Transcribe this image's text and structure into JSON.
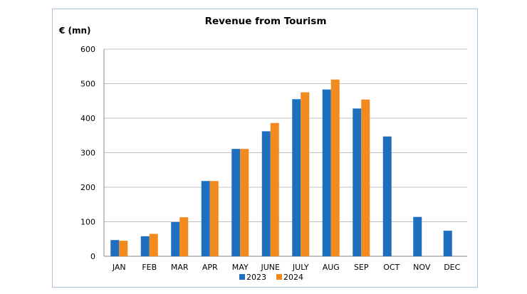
{
  "chart_data": {
    "type": "bar",
    "title": "Revenue from Tourism",
    "ylabel": "€ (mn)",
    "xlabel": "",
    "categories": [
      "JAN",
      "FEB",
      "MAR",
      "APR",
      "MAY",
      "JUNE",
      "JULY",
      "AUG",
      "SEP",
      "OCT",
      "NOV",
      "DEC"
    ],
    "series": [
      {
        "name": "2023",
        "color": "#1f6fbf",
        "values": [
          47,
          58,
          99,
          218,
          311,
          362,
          455,
          483,
          428,
          347,
          114,
          74
        ]
      },
      {
        "name": "2024",
        "color": "#f28a1e",
        "values": [
          45,
          65,
          113,
          218,
          311,
          386,
          475,
          512,
          454,
          null,
          null,
          null
        ]
      }
    ],
    "ylim": [
      0,
      600
    ],
    "yticks": [
      0,
      100,
      200,
      300,
      400,
      500,
      600
    ],
    "grid": true,
    "legend_position": "bottom"
  }
}
